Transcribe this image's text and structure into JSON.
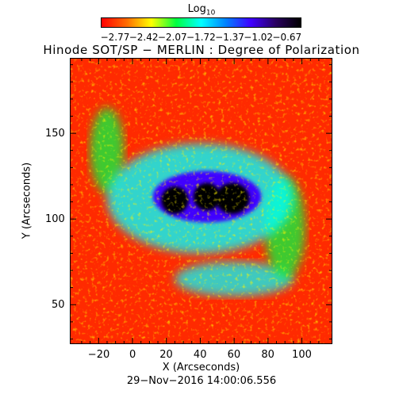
{
  "colorbar": {
    "title_main": "Log",
    "title_sub": "10",
    "tick_labels": [
      "−2.77",
      "−2.42",
      "−2.07",
      "−1.72",
      "−1.37",
      "−1.02",
      "−0.67"
    ],
    "range": [
      -2.77,
      -0.67
    ],
    "colors": [
      "#ff0000",
      "#ff6a00",
      "#ffff00",
      "#00ff40",
      "#00ffff",
      "#0080ff",
      "#3f00ff",
      "#2a0060",
      "#000000"
    ]
  },
  "title": "Hinode SOT/SP − MERLIN : Degree of Polarization",
  "footer": "29−Nov−2016 14:00:06.556",
  "chart_data": {
    "type": "heatmap",
    "title": "Hinode SOT/SP − MERLIN : Degree of Polarization",
    "xlabel": "X (Arcseconds)",
    "ylabel": "Y (Arcseconds)",
    "xlim": [
      -37,
      118
    ],
    "ylim": [
      27,
      194
    ],
    "xticks": [
      -20,
      0,
      20,
      40,
      60,
      80,
      100
    ],
    "xtick_labels": [
      "−20",
      "0",
      "20",
      "40",
      "60",
      "80",
      "100"
    ],
    "yticks": [
      50,
      100,
      150
    ],
    "ytick_labels": [
      "50",
      "100",
      "150"
    ],
    "value_units": "log10 degree of polarization",
    "colorbar_range": [
      -2.77,
      -0.67
    ],
    "background_level": -2.5,
    "features": [
      {
        "kind": "umbra",
        "x": 25,
        "y": 111,
        "rx": 8,
        "ry": 8,
        "peak": -0.7
      },
      {
        "kind": "umbra",
        "x": 44,
        "y": 113,
        "rx": 8,
        "ry": 8,
        "peak": -0.75
      },
      {
        "kind": "umbra",
        "x": 59,
        "y": 112,
        "rx": 10,
        "ry": 9,
        "peak": -0.7
      },
      {
        "kind": "penumbra",
        "x": 44,
        "y": 113,
        "rx": 32,
        "ry": 15,
        "peak": -1.25
      },
      {
        "kind": "plage",
        "x": 40,
        "y": 112,
        "rx": 55,
        "ry": 32,
        "peak": -1.75
      },
      {
        "kind": "network",
        "x": -15,
        "y": 140,
        "rx": 10,
        "ry": 25,
        "peak": -1.9
      },
      {
        "kind": "network",
        "x": 60,
        "y": 65,
        "rx": 35,
        "ry": 10,
        "peak": -1.85
      },
      {
        "kind": "network",
        "x": 90,
        "y": 95,
        "rx": 12,
        "ry": 30,
        "peak": -2.0
      }
    ]
  }
}
